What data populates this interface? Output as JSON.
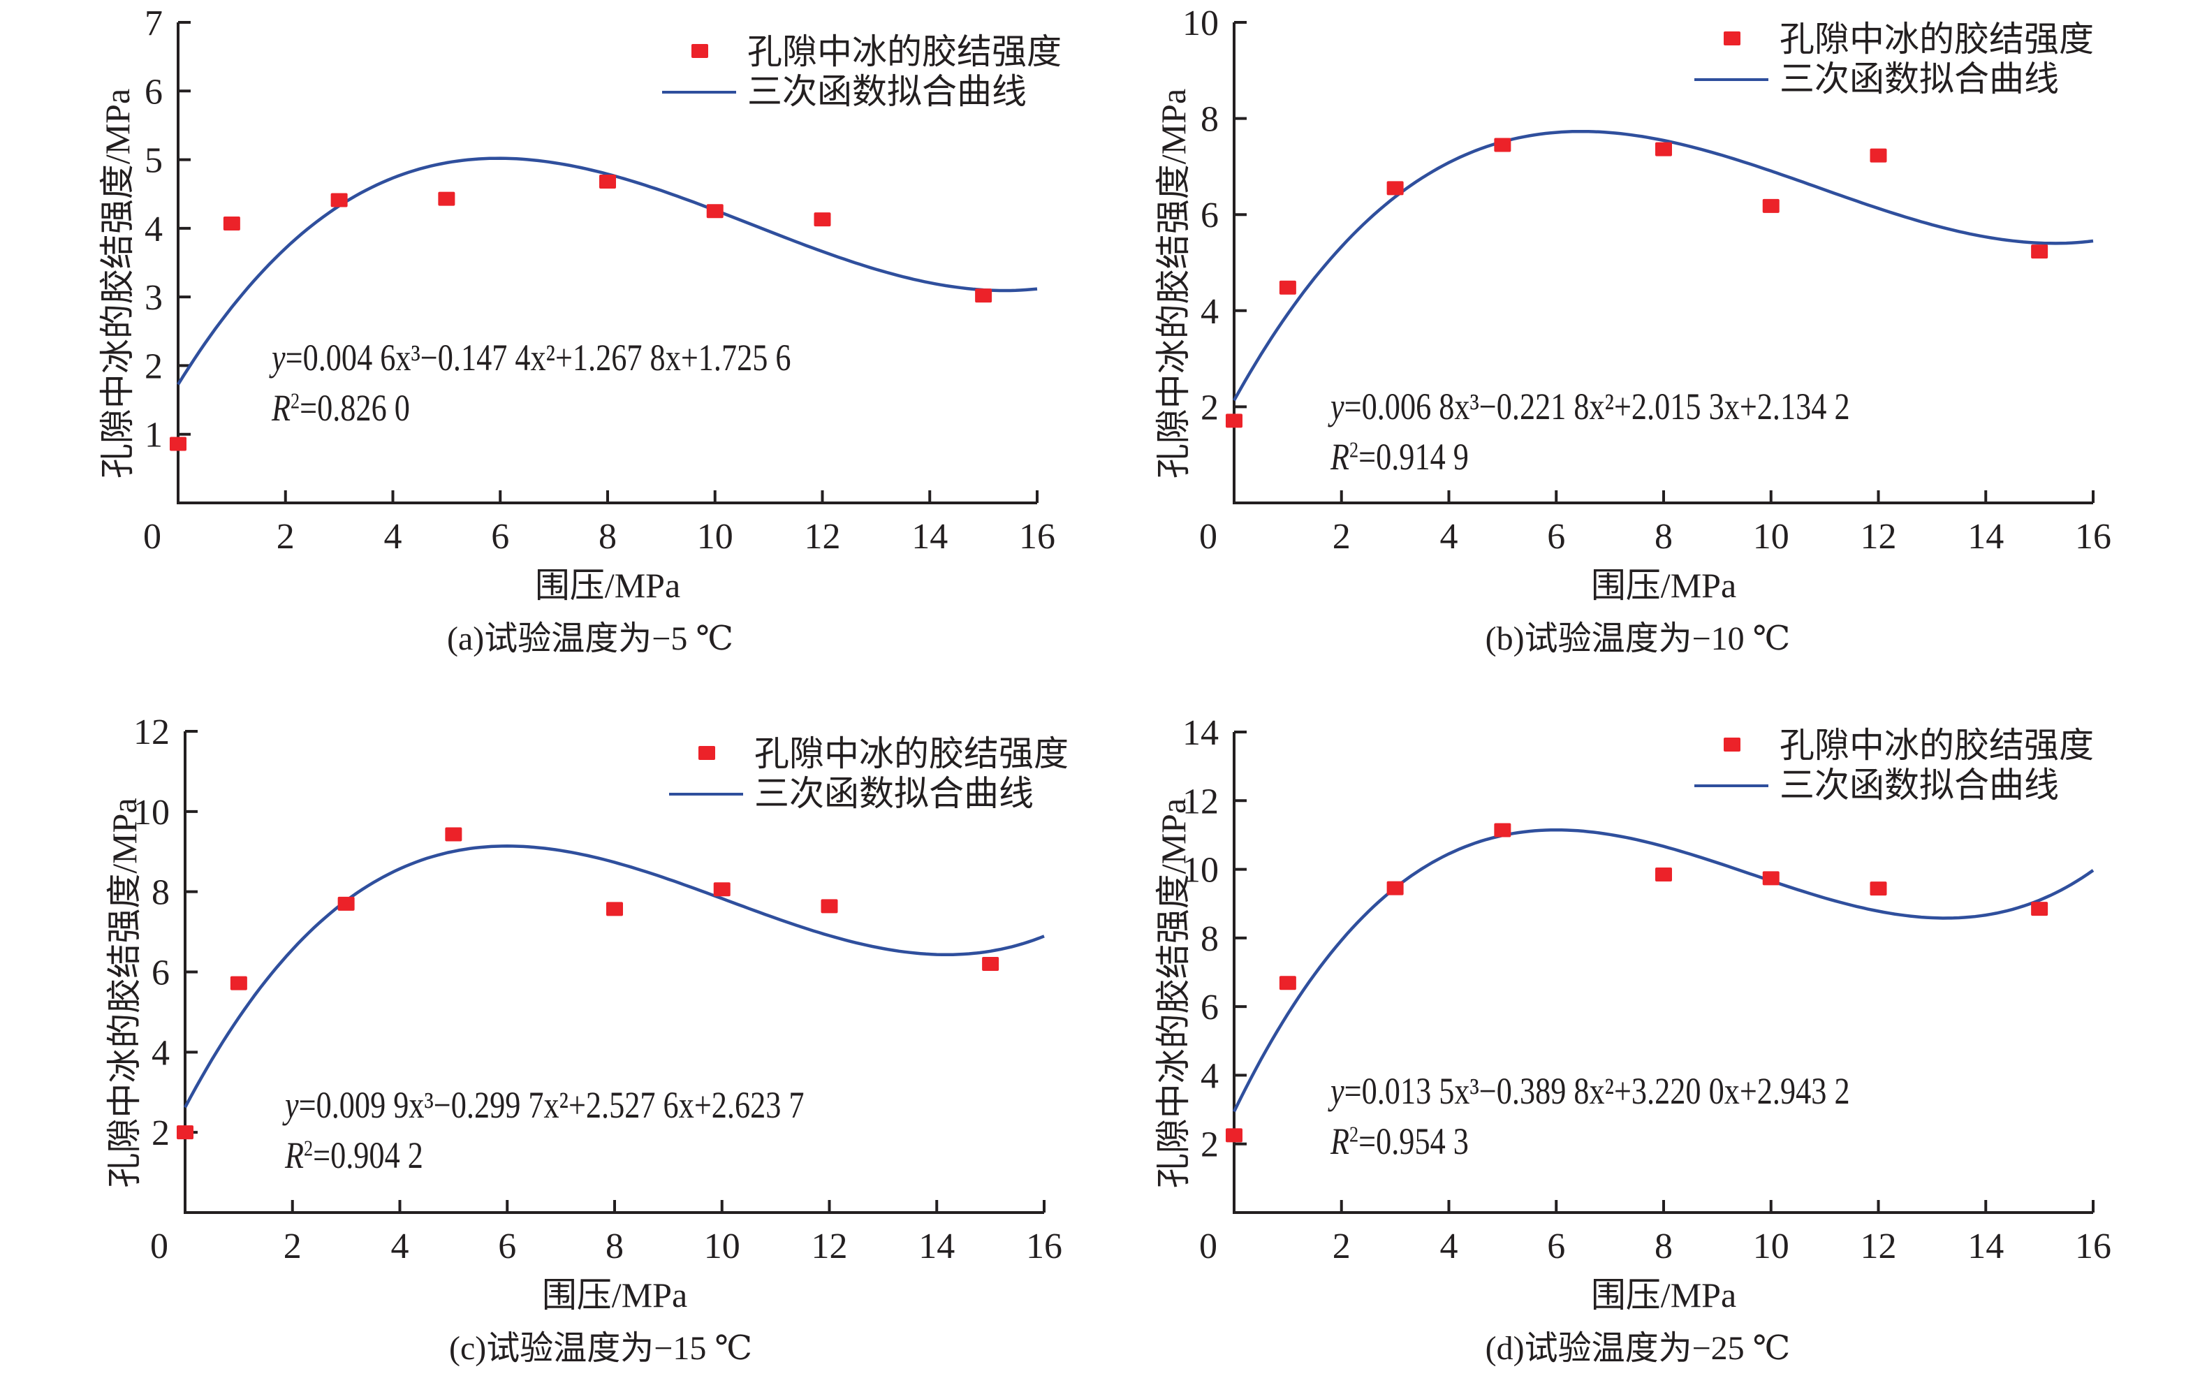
{
  "colors": {
    "marker": "#ec2229",
    "curve": "#2f4f9d",
    "axis": "#231f20"
  },
  "chart_data": [
    {
      "type": "scatter",
      "panel": "a",
      "caption": "(a)试验温度为−5 ℃",
      "xlabel": "围压/MPa",
      "ylabel": "孔隙中冰的胶结强度/MPa",
      "xlim": [
        0,
        16
      ],
      "ylim": [
        0,
        7
      ],
      "xticks": [
        "0",
        "2",
        "4",
        "6",
        "8",
        "10",
        "12",
        "14",
        "16"
      ],
      "yticks": [
        "1",
        "2",
        "3",
        "4",
        "5",
        "6",
        "7"
      ],
      "legend": {
        "position": "top-right",
        "marker_label": "孔隙中冰的胶结强度",
        "line_label": "三次函数拟合曲线"
      },
      "series": [
        {
          "name": "孔隙中冰的胶结强度",
          "kind": "points",
          "x": [
            0,
            1,
            3,
            5,
            8,
            10,
            12,
            15
          ],
          "y": [
            0.86,
            4.07,
            4.41,
            4.43,
            4.68,
            4.25,
            4.13,
            3.02
          ]
        },
        {
          "name": "三次函数拟合曲线",
          "kind": "cubic-fit",
          "coefficients": [
            0.0046,
            -0.1474,
            1.2678,
            1.7256
          ]
        }
      ],
      "equation": {
        "y_prefix": "y",
        "body": "=0.004 6x³−0.147 4x²+1.267 8x+1.725 6",
        "r2_prefix": "R",
        "r2_body": "=0.826 0"
      }
    },
    {
      "type": "scatter",
      "panel": "b",
      "caption": "(b)试验温度为−10 ℃",
      "xlabel": "围压/MPa",
      "ylabel": "孔隙中冰的胶结强度/MPa",
      "xlim": [
        0,
        16
      ],
      "ylim": [
        0,
        10
      ],
      "xticks": [
        "0",
        "2",
        "4",
        "6",
        "8",
        "10",
        "12",
        "14",
        "16"
      ],
      "yticks": [
        "2",
        "4",
        "6",
        "8",
        "10"
      ],
      "legend": {
        "position": "top-right",
        "marker_label": "孔隙中冰的胶结强度",
        "line_label": "三次函数拟合曲线"
      },
      "series": [
        {
          "name": "孔隙中冰的胶结强度",
          "kind": "points",
          "x": [
            0,
            1,
            3,
            5,
            8,
            10,
            12,
            15
          ],
          "y": [
            1.71,
            4.48,
            6.55,
            7.45,
            7.36,
            6.18,
            7.23,
            5.23
          ]
        },
        {
          "name": "三次函数拟合曲线",
          "kind": "cubic-fit",
          "coefficients": [
            0.0068,
            -0.2218,
            2.0153,
            2.1342
          ]
        }
      ],
      "equation": {
        "y_prefix": "y",
        "body": "=0.006 8x³−0.221 8x²+2.015 3x+2.134 2",
        "r2_prefix": "R",
        "r2_body": "=0.914 9"
      }
    },
    {
      "type": "scatter",
      "panel": "c",
      "caption": "(c)试验温度为−15 ℃",
      "xlabel": "围压/MPa",
      "ylabel": "孔隙中冰的胶结强度/MPa",
      "xlim": [
        0,
        16
      ],
      "ylim": [
        0,
        12
      ],
      "xticks": [
        "0",
        "2",
        "4",
        "6",
        "8",
        "10",
        "12",
        "14",
        "16"
      ],
      "yticks": [
        "2",
        "4",
        "6",
        "8",
        "10",
        "12"
      ],
      "legend": {
        "position": "top-right",
        "marker_label": "孔隙中冰的胶结强度",
        "line_label": "三次函数拟合曲线"
      },
      "series": [
        {
          "name": "孔隙中冰的胶结强度",
          "kind": "points",
          "x": [
            0,
            1,
            3,
            5,
            8,
            10,
            12,
            15
          ],
          "y": [
            2.0,
            5.72,
            7.7,
            9.43,
            7.57,
            8.06,
            7.64,
            6.2
          ]
        },
        {
          "name": "三次函数拟合曲线",
          "kind": "cubic-fit",
          "coefficients": [
            0.0099,
            -0.2997,
            2.5276,
            2.6237
          ]
        }
      ],
      "equation": {
        "y_prefix": "y",
        "body": "=0.009 9x³−0.299 7x²+2.527 6x+2.623 7",
        "r2_prefix": "R",
        "r2_body": "=0.904 2"
      }
    },
    {
      "type": "scatter",
      "panel": "d",
      "caption": "(d)试验温度为−25 ℃",
      "xlabel": "围压/MPa",
      "ylabel": "孔隙中冰的胶结强度/MPa",
      "xlim": [
        0,
        16
      ],
      "ylim": [
        0,
        14
      ],
      "xticks": [
        "0",
        "2",
        "4",
        "6",
        "8",
        "10",
        "12",
        "14",
        "16"
      ],
      "yticks": [
        "2",
        "4",
        "6",
        "8",
        "10",
        "12",
        "14"
      ],
      "legend": {
        "position": "top-right",
        "marker_label": "孔隙中冰的胶结强度",
        "line_label": "三次函数拟合曲线"
      },
      "series": [
        {
          "name": "孔隙中冰的胶结强度",
          "kind": "points",
          "x": [
            0,
            1,
            3,
            5,
            8,
            10,
            12,
            15
          ],
          "y": [
            2.25,
            6.69,
            9.45,
            11.14,
            9.85,
            9.74,
            9.44,
            8.85
          ]
        },
        {
          "name": "三次函数拟合曲线",
          "kind": "cubic-fit",
          "coefficients": [
            0.0135,
            -0.3898,
            3.22,
            2.9432
          ]
        }
      ],
      "equation": {
        "y_prefix": "y",
        "body": "=0.013 5x³−0.389 8x²+3.220 0x+2.943 2",
        "r2_prefix": "R",
        "r2_body": "=0.954 3"
      }
    }
  ]
}
